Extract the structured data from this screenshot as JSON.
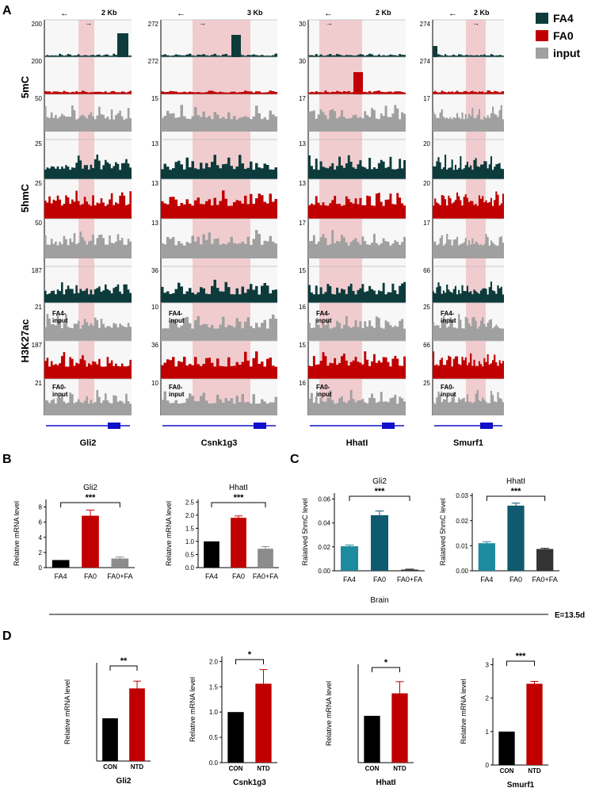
{
  "panel_labels": {
    "A": "A",
    "B": "B",
    "C": "C",
    "D": "D"
  },
  "legend": [
    {
      "label": "FA4",
      "color": "#0d3b3b"
    },
    {
      "label": "FA0",
      "color": "#c00000"
    },
    {
      "label": "input",
      "color": "#a0a0a0"
    }
  ],
  "colors": {
    "fa4": "#0d3b3b",
    "fa0": "#c00000",
    "input": "#a0a0a0",
    "highlight": "#f1cccf",
    "gene": "#1010c8",
    "black": "#000000",
    "gray_bar": "#8c8c8c",
    "teal_light": "#1e8aa0",
    "teal_dark": "#0f5a6e",
    "dark_bar": "#333333"
  },
  "row_labels": [
    "5mC",
    "5hmC",
    "H3K27ac"
  ],
  "genes": [
    "Gli2",
    "Csnk1g3",
    "HhatI",
    "Smurf1"
  ],
  "scale_bars": [
    "2 Kb",
    "3 Kb",
    "2 Kb",
    "2 Kb"
  ],
  "track_scales": {
    "mc_fa4": [
      "200",
      "272",
      "30",
      "274"
    ],
    "mc_fa0": [
      "200",
      "272",
      "30",
      "274"
    ],
    "mc_input": [
      "50",
      "15",
      "17",
      "17"
    ],
    "hmc_fa4": [
      "25",
      "13",
      "13",
      "20"
    ],
    "hmc_fa0": [
      "25",
      "13",
      "13",
      "20"
    ],
    "hmc_input": [
      "50",
      "13",
      "17",
      "17"
    ],
    "ac_fa4": [
      "187",
      "36",
      "15",
      "66"
    ],
    "ac_fa4input": [
      "21",
      "10",
      "16",
      "25"
    ],
    "ac_fa0": [
      "187",
      "36",
      "15",
      "66"
    ],
    "ac_fa0input": [
      "21",
      "10",
      "16",
      "25"
    ]
  },
  "track_labels": {
    "fa4_input": "FA4-\ninput",
    "fa0_input": "FA0-\ninput"
  },
  "chart_data": [
    {
      "id": "B1",
      "type": "bar",
      "title": "Gli2",
      "ylabel": "Relative mRNA  level",
      "categories": [
        "FA4",
        "FA0",
        "FA0+FA"
      ],
      "values": [
        1.0,
        6.85,
        1.2
      ],
      "errors": [
        0,
        0.75,
        0.2
      ],
      "yticks": [
        "0",
        "2",
        "4",
        "6",
        "8"
      ],
      "ylim": [
        0,
        9
      ],
      "significance": "***"
    },
    {
      "id": "B2",
      "type": "bar",
      "title": "HhatI",
      "ylabel": "Relative mRNA  level",
      "categories": [
        "FA4",
        "FA0",
        "FA0+FA"
      ],
      "values": [
        1.0,
        1.9,
        0.72
      ],
      "errors": [
        0,
        0.07,
        0.08
      ],
      "yticks": [
        "0.0",
        "0.5",
        "1.0",
        "1.5",
        "2.0",
        "2.5"
      ],
      "ylim": [
        0,
        2.6
      ],
      "significance": "***"
    },
    {
      "id": "C1",
      "type": "bar",
      "title": "Gli2",
      "ylabel": "Ralatived 5hmC level",
      "categories": [
        "FA4",
        "FA0",
        "FA0+FA"
      ],
      "values": [
        0.0205,
        0.0465,
        0.001
      ],
      "errors": [
        0.001,
        0.0035,
        0.0004
      ],
      "yticks": [
        "0.00",
        "0.02",
        "0.04",
        "0.06"
      ],
      "ylim": [
        0,
        0.065
      ],
      "significance": "***",
      "xlabel": "Brain"
    },
    {
      "id": "C2",
      "type": "bar",
      "title": "HhatI",
      "ylabel": "Ralatived 5hmC level",
      "categories": [
        "FA4",
        "FA0",
        "FA0+FA"
      ],
      "values": [
        0.011,
        0.026,
        0.0087
      ],
      "errors": [
        0.0006,
        0.001,
        0.0003
      ],
      "yticks": [
        "0.00",
        "0.01",
        "0.02",
        "0.03"
      ],
      "ylim": [
        0,
        0.031
      ],
      "significance": "***"
    },
    {
      "id": "D1",
      "type": "bar",
      "title": "Gli2",
      "ylabel": "Relative mRNA  level",
      "categories": [
        "CON",
        "NTD"
      ],
      "values": [
        1.0,
        1.7
      ],
      "errors": [
        0,
        0.17
      ],
      "yticks": [],
      "ylim": [
        0,
        2.3
      ],
      "significance": "**"
    },
    {
      "id": "D2",
      "type": "bar",
      "title": "Csnk1g3",
      "ylabel": "Relative mRNA  level",
      "categories": [
        "CON",
        "NTD"
      ],
      "values": [
        1.0,
        1.56
      ],
      "errors": [
        0,
        0.28
      ],
      "yticks": [
        "0.0",
        "0.5",
        "1.0",
        "1.5",
        "2.0"
      ],
      "ylim": [
        0,
        2.1
      ],
      "significance": "*"
    },
    {
      "id": "D3",
      "type": "bar",
      "title": "HhatI",
      "ylabel": "Relative mRNA  level",
      "categories": [
        "CON",
        "NTD"
      ],
      "values": [
        1.0,
        1.48
      ],
      "errors": [
        0,
        0.25
      ],
      "yticks": [],
      "ylim": [
        0,
        2.1
      ],
      "significance": "*"
    },
    {
      "id": "D4",
      "type": "bar",
      "title": "Smurf1",
      "ylabel": "Relative mRNA  level",
      "categories": [
        "CON",
        "NTD"
      ],
      "values": [
        1.0,
        2.43
      ],
      "errors": [
        0,
        0.07
      ],
      "yticks": [
        "0",
        "1",
        "2",
        "3"
      ],
      "ylim": [
        0,
        3.2
      ],
      "significance": "***"
    }
  ],
  "embryo_label": "E=13.5d"
}
